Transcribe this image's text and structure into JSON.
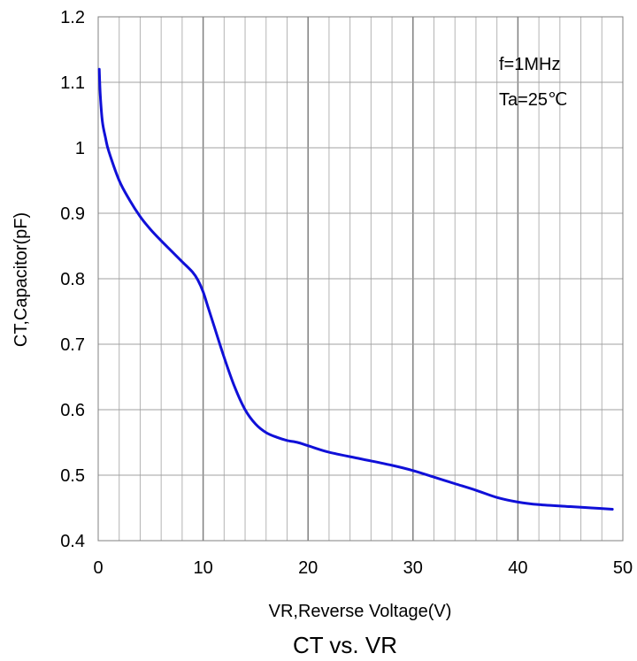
{
  "chart_data": {
    "type": "line",
    "title": "CT vs. VR",
    "xlabel": "VR,Reverse Voltage(V)",
    "ylabel": "CT,Capacitor(pF)",
    "xlim": [
      0,
      50
    ],
    "ylim": [
      0.4,
      1.2
    ],
    "x_ticks": [
      "0",
      "10",
      "20",
      "30",
      "40",
      "50"
    ],
    "y_ticks": [
      "0.4",
      "0.5",
      "0.6",
      "0.7",
      "0.8",
      "0.9",
      "1",
      "1.1",
      "1.2"
    ],
    "grid": true,
    "annotations": [
      "f=1MHz",
      "Ta=25℃"
    ],
    "series": [
      {
        "color": "#1010d8",
        "x": [
          0.1,
          0.2,
          0.4,
          0.7,
          1,
          2,
          3,
          4,
          5,
          6,
          7,
          8,
          9,
          9.5,
          10,
          10.5,
          11,
          12,
          13,
          14,
          15,
          16,
          17,
          18,
          19,
          20,
          22,
          25,
          28,
          30,
          32,
          34,
          36,
          38,
          40,
          42,
          45,
          47,
          49
        ],
        "y": [
          1.12,
          1.08,
          1.04,
          1.015,
          0.995,
          0.95,
          0.92,
          0.895,
          0.875,
          0.858,
          0.842,
          0.826,
          0.81,
          0.798,
          0.78,
          0.755,
          0.73,
          0.68,
          0.635,
          0.6,
          0.578,
          0.565,
          0.558,
          0.553,
          0.55,
          0.545,
          0.535,
          0.525,
          0.515,
          0.507,
          0.497,
          0.487,
          0.477,
          0.466,
          0.459,
          0.455,
          0.452,
          0.45,
          0.448
        ]
      }
    ]
  }
}
